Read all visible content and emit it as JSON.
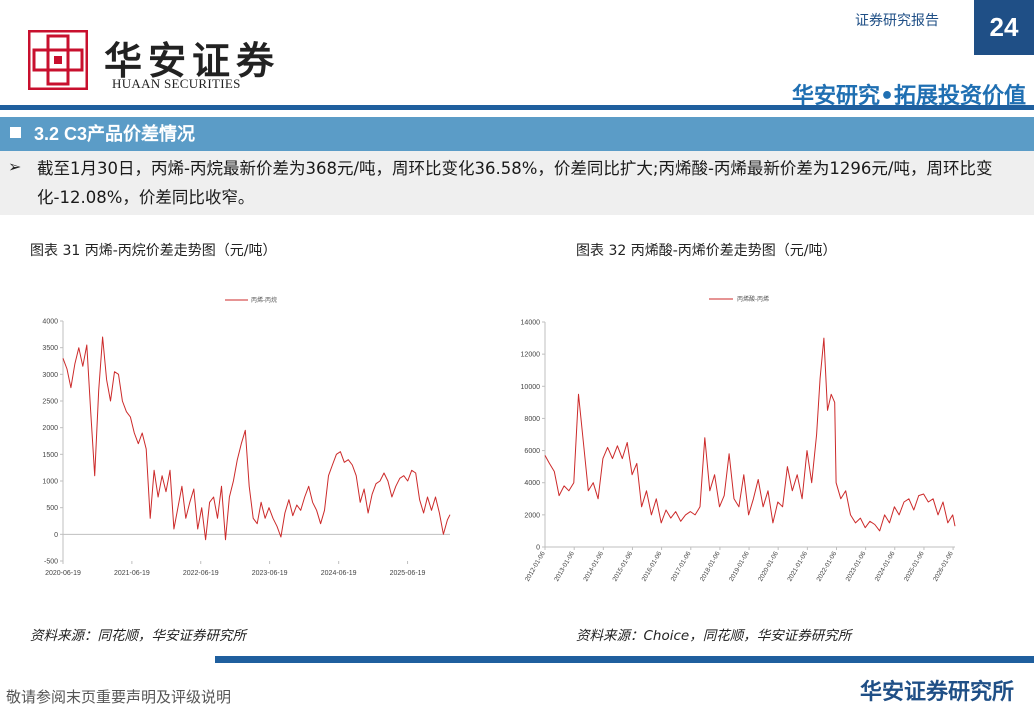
{
  "header": {
    "logo_cn": "华安证券",
    "logo_en": "HUAAN SECURITIES",
    "report_type": "证券研究报告",
    "page_number": "24",
    "slogan": "华安研究•拓展投资价值"
  },
  "section": {
    "title": "3.2 C3产品价差情况",
    "summary": "截至1月30日，丙烯-丙烷最新价差为368元/吨，周环比变化36.58%，价差同比扩大;丙烯酸-丙烯最新价差为1296元/吨，周环比变化-12.08%，价差同比收窄。"
  },
  "figures": [
    {
      "title": "图表 31 丙烯-丙烷价差走势图（元/吨）",
      "source": "资料来源：同花顺，华安证券研究所"
    },
    {
      "title": "图表 32 丙烯酸-丙烯价差走势图（元/吨）",
      "source": "资料来源：Choice，同花顺，华安证券研究所"
    }
  ],
  "chart_data": [
    {
      "type": "line",
      "series": [
        {
          "name": "丙烯-丙烷",
          "points": [
            [
              "2020-06-19",
              3300
            ],
            [
              "2020-07-10",
              3100
            ],
            [
              "2020-07-31",
              2750
            ],
            [
              "2020-08-21",
              3200
            ],
            [
              "2020-09-11",
              3500
            ],
            [
              "2020-10-02",
              3150
            ],
            [
              "2020-10-23",
              3550
            ],
            [
              "2020-11-13",
              2300
            ],
            [
              "2020-12-04",
              1100
            ],
            [
              "2020-12-25",
              2700
            ],
            [
              "2021-01-15",
              3700
            ],
            [
              "2021-02-05",
              2900
            ],
            [
              "2021-02-26",
              2500
            ],
            [
              "2021-03-19",
              3050
            ],
            [
              "2021-04-09",
              3000
            ],
            [
              "2021-04-30",
              2500
            ],
            [
              "2021-05-21",
              2300
            ],
            [
              "2021-06-11",
              2200
            ],
            [
              "2021-07-02",
              1900
            ],
            [
              "2021-07-23",
              1700
            ],
            [
              "2021-08-13",
              1900
            ],
            [
              "2021-09-03",
              1600
            ],
            [
              "2021-09-24",
              300
            ],
            [
              "2021-10-15",
              1200
            ],
            [
              "2021-11-05",
              700
            ],
            [
              "2021-11-26",
              1100
            ],
            [
              "2021-12-17",
              800
            ],
            [
              "2022-01-07",
              1200
            ],
            [
              "2022-01-28",
              100
            ],
            [
              "2022-02-18",
              500
            ],
            [
              "2022-03-11",
              900
            ],
            [
              "2022-04-01",
              300
            ],
            [
              "2022-04-22",
              600
            ],
            [
              "2022-05-13",
              850
            ],
            [
              "2022-06-03",
              100
            ],
            [
              "2022-06-24",
              500
            ],
            [
              "2022-07-15",
              -100
            ],
            [
              "2022-08-05",
              600
            ],
            [
              "2022-08-26",
              700
            ],
            [
              "2022-09-16",
              300
            ],
            [
              "2022-10-07",
              900
            ],
            [
              "2022-10-28",
              -100
            ],
            [
              "2022-11-18",
              700
            ],
            [
              "2022-12-09",
              1000
            ],
            [
              "2022-12-30",
              1400
            ],
            [
              "2023-01-20",
              1700
            ],
            [
              "2023-02-10",
              1950
            ],
            [
              "2023-03-03",
              900
            ],
            [
              "2023-03-24",
              300
            ],
            [
              "2023-04-14",
              200
            ],
            [
              "2023-05-05",
              600
            ],
            [
              "2023-05-26",
              300
            ],
            [
              "2023-06-16",
              500
            ],
            [
              "2023-07-07",
              300
            ],
            [
              "2023-07-28",
              150
            ],
            [
              "2023-08-18",
              -50
            ],
            [
              "2023-09-08",
              400
            ],
            [
              "2023-09-29",
              650
            ],
            [
              "2023-10-20",
              350
            ],
            [
              "2023-11-10",
              550
            ],
            [
              "2023-12-01",
              450
            ],
            [
              "2023-12-22",
              700
            ],
            [
              "2024-01-12",
              900
            ],
            [
              "2024-02-02",
              600
            ],
            [
              "2024-02-23",
              450
            ],
            [
              "2024-03-15",
              200
            ],
            [
              "2024-04-05",
              450
            ],
            [
              "2024-04-26",
              1100
            ],
            [
              "2024-05-17",
              1300
            ],
            [
              "2024-06-07",
              1500
            ],
            [
              "2024-06-28",
              1550
            ],
            [
              "2024-07-19",
              1350
            ],
            [
              "2024-08-09",
              1400
            ],
            [
              "2024-08-30",
              1300
            ],
            [
              "2024-09-20",
              1100
            ],
            [
              "2024-10-11",
              600
            ],
            [
              "2024-11-01",
              850
            ],
            [
              "2024-11-22",
              400
            ],
            [
              "2024-12-13",
              750
            ],
            [
              "2025-01-03",
              950
            ],
            [
              "2025-01-24",
              1000
            ],
            [
              "2025-02-14",
              1150
            ],
            [
              "2025-03-07",
              1000
            ],
            [
              "2025-03-28",
              700
            ],
            [
              "2025-04-18",
              900
            ],
            [
              "2025-05-09",
              1050
            ],
            [
              "2025-05-30",
              1100
            ],
            [
              "2025-06-20",
              1000
            ],
            [
              "2025-07-11",
              1200
            ],
            [
              "2025-08-01",
              1150
            ],
            [
              "2025-08-22",
              650
            ],
            [
              "2025-09-12",
              400
            ],
            [
              "2025-10-03",
              700
            ],
            [
              "2025-10-24",
              450
            ],
            [
              "2025-11-14",
              700
            ],
            [
              "2025-12-05",
              400
            ],
            [
              "2025-12-26",
              0
            ],
            [
              "2026-01-16",
              270
            ],
            [
              "2026-01-30",
              368
            ]
          ]
        }
      ],
      "ylim": [
        -500,
        4000
      ],
      "yticks": [
        -500,
        0,
        500,
        1000,
        1500,
        2000,
        2500,
        3000,
        3500,
        4000
      ],
      "xticks": [
        "2020-06-19",
        "2021-06-19",
        "2022-06-19",
        "2023-06-19",
        "2024-06-19",
        "2025-06-19"
      ],
      "xlabel": "",
      "ylabel": "",
      "grid": false,
      "legend": "top-center",
      "color": "#cc2a2a"
    },
    {
      "type": "line",
      "series": [
        {
          "name": "丙烯酸-丙烯",
          "points": [
            [
              "2012-01-06",
              5700
            ],
            [
              "2012-03-01",
              5200
            ],
            [
              "2012-05-01",
              4700
            ],
            [
              "2012-07-01",
              3200
            ],
            [
              "2012-09-01",
              3800
            ],
            [
              "2012-11-01",
              3500
            ],
            [
              "2013-01-01",
              4000
            ],
            [
              "2013-03-01",
              9500
            ],
            [
              "2013-05-01",
              6500
            ],
            [
              "2013-07-01",
              3500
            ],
            [
              "2013-09-01",
              4000
            ],
            [
              "2013-11-01",
              3000
            ],
            [
              "2014-01-01",
              5500
            ],
            [
              "2014-03-01",
              6200
            ],
            [
              "2014-05-01",
              5500
            ],
            [
              "2014-07-01",
              6300
            ],
            [
              "2014-09-01",
              5500
            ],
            [
              "2014-11-01",
              6500
            ],
            [
              "2015-01-01",
              4500
            ],
            [
              "2015-03-01",
              5200
            ],
            [
              "2015-05-01",
              2500
            ],
            [
              "2015-07-01",
              3500
            ],
            [
              "2015-09-01",
              2000
            ],
            [
              "2015-11-01",
              3000
            ],
            [
              "2016-01-01",
              1500
            ],
            [
              "2016-03-01",
              2300
            ],
            [
              "2016-05-01",
              1800
            ],
            [
              "2016-07-01",
              2200
            ],
            [
              "2016-09-01",
              1600
            ],
            [
              "2016-11-01",
              2000
            ],
            [
              "2017-01-01",
              2200
            ],
            [
              "2017-03-01",
              2000
            ],
            [
              "2017-05-01",
              2500
            ],
            [
              "2017-07-01",
              6800
            ],
            [
              "2017-09-01",
              3500
            ],
            [
              "2017-11-01",
              4500
            ],
            [
              "2018-01-01",
              2500
            ],
            [
              "2018-03-01",
              3200
            ],
            [
              "2018-05-01",
              5800
            ],
            [
              "2018-07-01",
              3000
            ],
            [
              "2018-09-01",
              2500
            ],
            [
              "2018-11-01",
              4500
            ],
            [
              "2019-01-01",
              2000
            ],
            [
              "2019-03-01",
              3000
            ],
            [
              "2019-05-01",
              4200
            ],
            [
              "2019-07-01",
              2500
            ],
            [
              "2019-09-01",
              3500
            ],
            [
              "2019-11-01",
              1500
            ],
            [
              "2020-01-01",
              2800
            ],
            [
              "2020-03-01",
              2500
            ],
            [
              "2020-05-01",
              5000
            ],
            [
              "2020-07-01",
              3500
            ],
            [
              "2020-09-01",
              4500
            ],
            [
              "2020-11-01",
              3000
            ],
            [
              "2021-01-01",
              6000
            ],
            [
              "2021-03-01",
              4000
            ],
            [
              "2021-05-01",
              7000
            ],
            [
              "2021-06-15",
              10500
            ],
            [
              "2021-08-01",
              13000
            ],
            [
              "2021-09-15",
              8500
            ],
            [
              "2021-11-01",
              9500
            ],
            [
              "2021-12-15",
              9000
            ],
            [
              "2022-01-01",
              4000
            ],
            [
              "2022-03-01",
              3000
            ],
            [
              "2022-05-01",
              3500
            ],
            [
              "2022-07-01",
              2000
            ],
            [
              "2022-09-01",
              1500
            ],
            [
              "2022-11-01",
              1800
            ],
            [
              "2023-01-01",
              1200
            ],
            [
              "2023-03-01",
              1600
            ],
            [
              "2023-05-01",
              1400
            ],
            [
              "2023-07-01",
              1000
            ],
            [
              "2023-09-01",
              2000
            ],
            [
              "2023-11-01",
              1500
            ],
            [
              "2024-01-01",
              2500
            ],
            [
              "2024-03-01",
              2000
            ],
            [
              "2024-05-01",
              2800
            ],
            [
              "2024-07-01",
              3000
            ],
            [
              "2024-09-01",
              2300
            ],
            [
              "2024-11-01",
              3200
            ],
            [
              "2025-01-01",
              3300
            ],
            [
              "2025-03-01",
              2800
            ],
            [
              "2025-05-01",
              3000
            ],
            [
              "2025-07-01",
              2000
            ],
            [
              "2025-09-01",
              2800
            ],
            [
              "2025-11-01",
              1500
            ],
            [
              "2026-01-01",
              2000
            ],
            [
              "2026-01-30",
              1296
            ]
          ]
        }
      ],
      "ylim": [
        0,
        14000
      ],
      "yticks": [
        0,
        2000,
        4000,
        6000,
        8000,
        10000,
        12000,
        14000
      ],
      "xticks": [
        "2012-01-06",
        "2013-01-06",
        "2014-01-06",
        "2015-01-06",
        "2016-01-06",
        "2017-01-06",
        "2018-01-06",
        "2019-01-06",
        "2020-01-06",
        "2021-01-06",
        "2022-01-06",
        "2023-01-06",
        "2024-01-06",
        "2025-01-06",
        "2026-01-06"
      ],
      "xlabel": "",
      "ylabel": "",
      "grid": false,
      "legend": "top-center",
      "color": "#cc2a2a"
    }
  ],
  "footer": {
    "disclaimer": "敬请参阅末页重要声明及评级说明",
    "brand": "华安证券研究所"
  },
  "colors": {
    "brand_blue": "#1f4f86",
    "section_bar": "#5b9cc7",
    "logo_red": "#c8102e",
    "series_red": "#cc2a2a"
  }
}
